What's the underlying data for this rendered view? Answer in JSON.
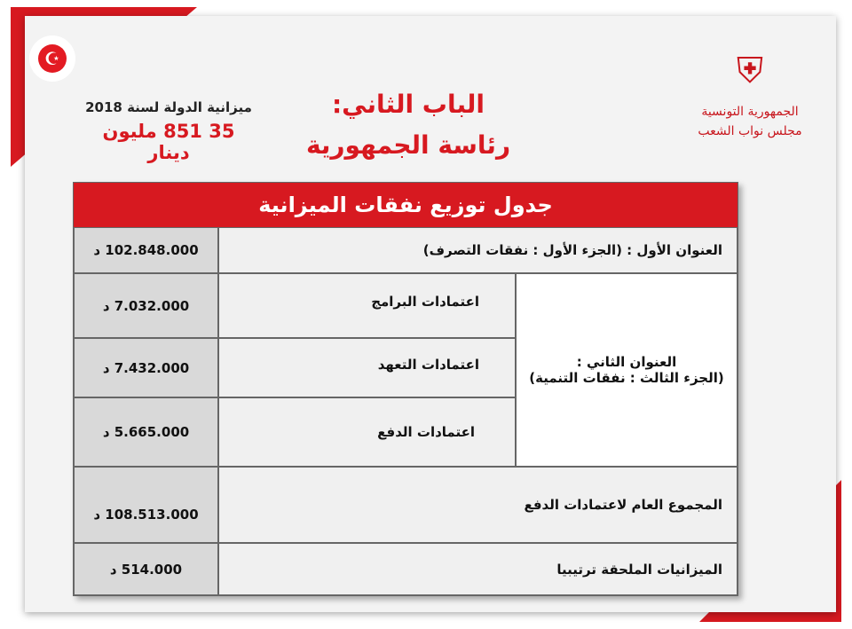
{
  "header": {
    "budget_label": "ميزانية الدولة لسنة 2018",
    "budget_amount": "35 851 مليون دينار",
    "chapter": "الباب الثاني:",
    "chapter_name": "رئاسة الجمهورية"
  },
  "logo": {
    "line1": "الجمهورية التونسية",
    "line2": "مجلس نواب الشعب"
  },
  "flag_icon": "tunisia-flag",
  "colors": {
    "accent": "#d71920"
  },
  "table": {
    "title": "جدول توزيع نفقات الميزانية",
    "row1": {
      "label": "العنوان الأول :  (الجزء الأول : نفقات التصرف)",
      "amount": "102.848.000 د"
    },
    "title2": {
      "label1": "العنوان الثاني :",
      "label2": "(الجزء الثالث : نفقات التنمية)"
    },
    "sub": [
      {
        "label": "اعتمادات البرامج",
        "amount": "7.032.000  د"
      },
      {
        "label": "اعتمادات التعهد",
        "amount": "7.432.000  د"
      },
      {
        "label": "اعتمادات الدفع",
        "amount": "5.665.000  د"
      }
    ],
    "total": {
      "label": "المجموع العام لاعتمادات الدفع",
      "amount": "108.513.000 د"
    },
    "annex": {
      "label": "الميزانيات الملحقة ترتيبيا",
      "amount": "514.000     د"
    }
  }
}
